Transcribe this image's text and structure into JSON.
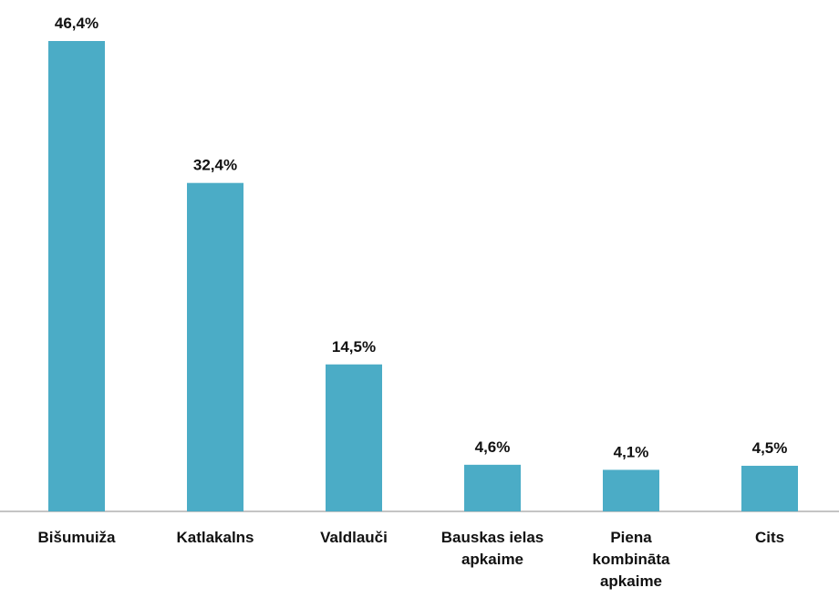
{
  "chart_data": {
    "type": "bar",
    "categories": [
      "Bišumuiža",
      "Katlakalns",
      "Valdlauči",
      "Bauskas ielas\napkaime",
      "Piena\nkombināta\napkaime",
      "Cits"
    ],
    "values": [
      46.4,
      32.4,
      14.5,
      4.6,
      4.1,
      4.5
    ],
    "value_labels": [
      "46,4%",
      "32,4%",
      "14,5%",
      "4,6%",
      "4,1%",
      "4,5%"
    ],
    "color": "#4bacc6"
  }
}
